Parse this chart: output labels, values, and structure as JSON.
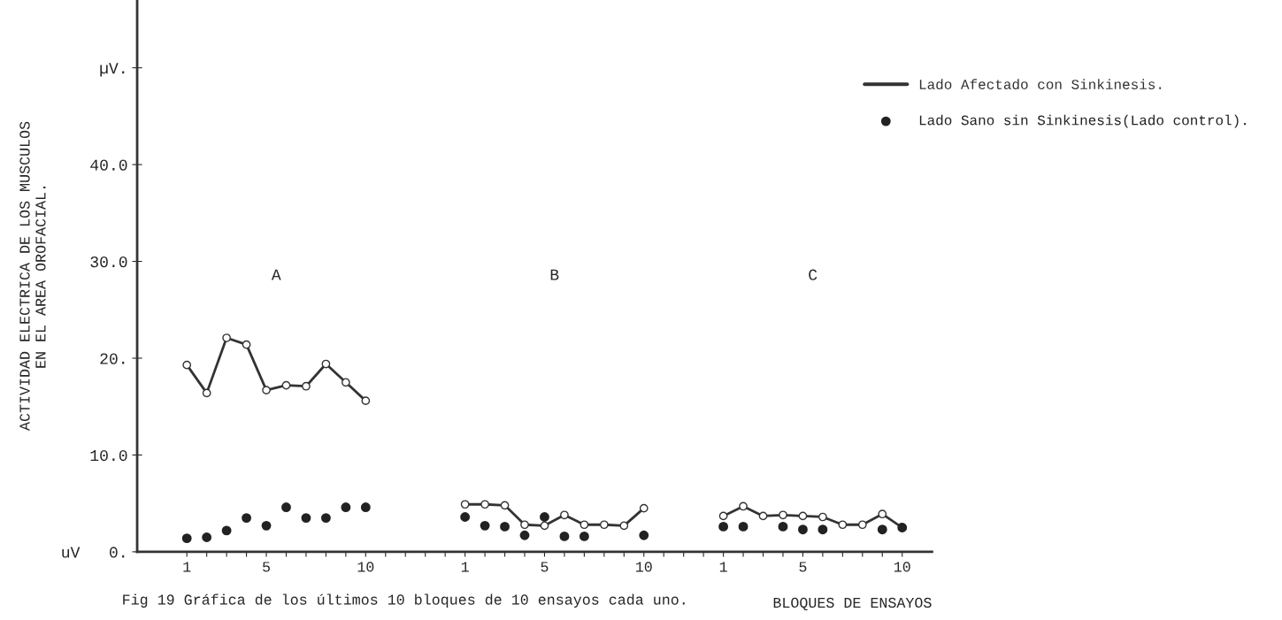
{
  "chart_data": {
    "type": "line",
    "xlabel": "BLOQUES DE ENSAYOS",
    "ylabel": "ACTIVIDAD ELECTRICA DE LOS MUSCULOS\nEN EL AREA OROFACIAL.",
    "categories": [
      "1",
      null,
      null,
      null,
      "5",
      null,
      null,
      null,
      null,
      "10",
      null,
      null,
      null,
      null,
      "1",
      null,
      null,
      null,
      "5",
      null,
      null,
      null,
      null,
      "10",
      null,
      null,
      null,
      "1",
      null,
      null,
      null,
      "5",
      null,
      null,
      null,
      null,
      "10"
    ],
    "series": [
      {
        "name": "Lado Afectado con Sinkinesis.",
        "marker": "circle",
        "line_style": "solid",
        "color": "#333333",
        "values": [
          19.3,
          16.4,
          22.1,
          21.4,
          16.7,
          17.2,
          17.1,
          19.4,
          17.5,
          15.6,
          null,
          null,
          null,
          null,
          4.9,
          4.9,
          4.8,
          2.8,
          2.7,
          3.8,
          2.8,
          2.8,
          2.7,
          4.5,
          null,
          null,
          null,
          3.7,
          4.7,
          3.7,
          3.8,
          3.7,
          3.6,
          2.8,
          2.8,
          3.9,
          2.5
        ]
      },
      {
        "name": "Lado Sano sin Sinkinesis(Lado control).",
        "type": "scatter",
        "marker": "circle",
        "color": "#222222",
        "values": [
          1.4,
          1.5,
          2.2,
          3.5,
          2.7,
          4.6,
          3.5,
          3.5,
          4.6,
          4.6,
          null,
          null,
          null,
          null,
          3.6,
          2.7,
          2.6,
          1.7,
          3.6,
          1.6,
          1.6,
          null,
          null,
          1.7,
          null,
          null,
          null,
          2.6,
          2.6,
          null,
          2.6,
          2.3,
          2.3,
          null,
          null,
          2.3,
          2.5
        ]
      }
    ],
    "ylim": [
      0,
      57
    ],
    "yticks": [
      {
        "value": 0,
        "label": "uV   0."
      },
      {
        "value": 10,
        "label": "10.0"
      },
      {
        "value": 20,
        "label": "20."
      },
      {
        "value": 30,
        "label": "30.0"
      },
      {
        "value": 40,
        "label": "40.0"
      },
      {
        "value": 50,
        "label": "µV."
      }
    ],
    "annotations": [
      "A",
      "B",
      "C",
      "Fig 19 Gráfica de los últimos 10 bloques de 10 ensayos cada uno."
    ],
    "grid": false,
    "legend": "top right"
  }
}
